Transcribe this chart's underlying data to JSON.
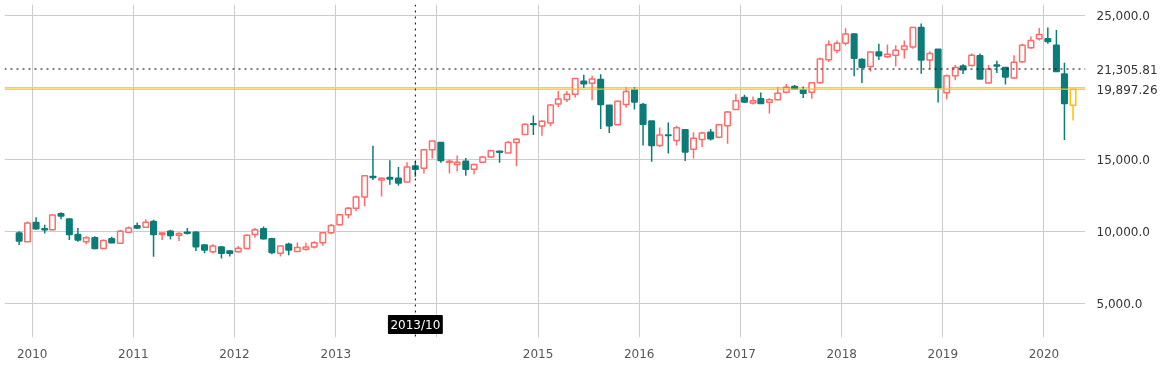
{
  "chart_data": {
    "type": "candlestick",
    "x": [
      "2009-11-15",
      "2009-12-15",
      "2010-01-15",
      "2010-02-15",
      "2010-03-15",
      "2010-04-15",
      "2010-05-15",
      "2010-06-15",
      "2010-07-15",
      "2010-08-15",
      "2010-09-15",
      "2010-10-15",
      "2010-11-15",
      "2010-12-15",
      "2011-01-15",
      "2011-02-15",
      "2011-03-15",
      "2011-04-15",
      "2011-05-15",
      "2011-06-15",
      "2011-07-15",
      "2011-08-15",
      "2011-09-15",
      "2011-10-15",
      "2011-11-15",
      "2011-12-15",
      "2012-01-15",
      "2012-02-15",
      "2012-03-15",
      "2012-04-15",
      "2012-05-15",
      "2012-06-15",
      "2012-07-15",
      "2012-08-15",
      "2012-09-15",
      "2012-10-15",
      "2012-11-15",
      "2012-12-15",
      "2013-01-15",
      "2013-02-15",
      "2013-03-15",
      "2013-04-15",
      "2013-05-15",
      "2013-06-15",
      "2013-07-15",
      "2013-08-15",
      "2013-09-15",
      "2013-10-15",
      "2013-11-15",
      "2013-12-15",
      "2014-01-15",
      "2014-02-15",
      "2014-03-15",
      "2014-04-15",
      "2014-05-15",
      "2014-06-15",
      "2014-07-15",
      "2014-08-15",
      "2014-09-15",
      "2014-10-15",
      "2014-11-15",
      "2014-12-15",
      "2015-01-15",
      "2015-02-15",
      "2015-03-15",
      "2015-04-15",
      "2015-05-15",
      "2015-06-15",
      "2015-07-15",
      "2015-08-15",
      "2015-09-15",
      "2015-10-15",
      "2015-11-15",
      "2015-12-15",
      "2016-01-15",
      "2016-02-15",
      "2016-03-15",
      "2016-04-15",
      "2016-05-15",
      "2016-06-15",
      "2016-07-15",
      "2016-08-15",
      "2016-09-15",
      "2016-10-15",
      "2016-11-15",
      "2016-12-15",
      "2017-01-15",
      "2017-02-15",
      "2017-03-15",
      "2017-04-15",
      "2017-05-15",
      "2017-06-15",
      "2017-07-15",
      "2017-08-15",
      "2017-09-15",
      "2017-10-15",
      "2017-11-15",
      "2017-12-15",
      "2018-01-15",
      "2018-02-15",
      "2018-03-15",
      "2018-04-15",
      "2018-05-15",
      "2018-06-15",
      "2018-07-15",
      "2018-08-15",
      "2018-09-15",
      "2018-10-15",
      "2018-11-15",
      "2018-12-15",
      "2019-01-15",
      "2019-02-15",
      "2019-03-15",
      "2019-04-15",
      "2019-05-15",
      "2019-06-15",
      "2019-07-15",
      "2019-08-15",
      "2019-09-15",
      "2019-10-15",
      "2019-11-15",
      "2019-12-15",
      "2020-01-15",
      "2020-02-15",
      "2020-03-15",
      "2020-04-15"
    ],
    "ohlc": [
      [
        9886,
        10000,
        9045,
        9318
      ],
      [
        9272,
        10682,
        9250,
        10569
      ],
      [
        10614,
        10978,
        10114,
        10182
      ],
      [
        10182,
        10455,
        9841,
        10114
      ],
      [
        10114,
        11183,
        10068,
        11137
      ],
      [
        11228,
        11319,
        10842,
        11069
      ],
      [
        10864,
        10900,
        9386,
        9773
      ],
      [
        9773,
        10228,
        9272,
        9386
      ],
      [
        9272,
        9659,
        9090,
        9545
      ],
      [
        9545,
        9659,
        8749,
        8794
      ],
      [
        8794,
        9420,
        8750,
        9363
      ],
      [
        9477,
        9613,
        9158,
        9204
      ],
      [
        9158,
        10114,
        9158,
        10000
      ],
      [
        9932,
        10341,
        9886,
        10228
      ],
      [
        10387,
        10614,
        10159,
        10228
      ],
      [
        10273,
        10842,
        10228,
        10637
      ],
      [
        10682,
        10796,
        8226,
        9773
      ],
      [
        9773,
        9932,
        9386,
        9886
      ],
      [
        10000,
        10114,
        9431,
        9704
      ],
      [
        9727,
        9932,
        9318,
        9841
      ],
      [
        9932,
        10228,
        9773,
        9864
      ],
      [
        9932,
        10000,
        8635,
        8931
      ],
      [
        9045,
        9090,
        8476,
        8703
      ],
      [
        8567,
        9090,
        8476,
        8976
      ],
      [
        8908,
        8976,
        8112,
        8476
      ],
      [
        8635,
        8703,
        8249,
        8476
      ],
      [
        8567,
        8976,
        8522,
        8817
      ],
      [
        8794,
        9773,
        8749,
        9727
      ],
      [
        9773,
        10228,
        9545,
        10114
      ],
      [
        10182,
        10341,
        9431,
        9477
      ],
      [
        9477,
        9545,
        8408,
        8522
      ],
      [
        8476,
        9000,
        8249,
        8976
      ],
      [
        9090,
        9204,
        8339,
        8703
      ],
      [
        8590,
        9227,
        8590,
        8863
      ],
      [
        8750,
        9200,
        8650,
        8900
      ],
      [
        8900,
        9300,
        8800,
        9200
      ],
      [
        9200,
        9950,
        9000,
        9900
      ],
      [
        9900,
        10500,
        9800,
        10400
      ],
      [
        10450,
        11200,
        10400,
        11150
      ],
      [
        11150,
        11700,
        10900,
        11600
      ],
      [
        11600,
        12500,
        11400,
        12384
      ],
      [
        12384,
        13862,
        11747,
        13862
      ],
      [
        13817,
        15955,
        13567,
        13749
      ],
      [
        13567,
        13760,
        12429,
        13703
      ],
      [
        13749,
        14955,
        13248,
        13635
      ],
      [
        13703,
        14478,
        13180,
        13362
      ],
      [
        13430,
        14818,
        13430,
        14477
      ],
      [
        14545,
        14886,
        13794,
        14317
      ],
      [
        14386,
        15750,
        14022,
        15682
      ],
      [
        15682,
        16296,
        15068,
        16296
      ],
      [
        16183,
        16183,
        14773,
        14932
      ],
      [
        14818,
        15000,
        14022,
        14886
      ],
      [
        14659,
        15273,
        14159,
        14818
      ],
      [
        14886,
        15114,
        13862,
        14317
      ],
      [
        14317,
        14705,
        13977,
        14659
      ],
      [
        14818,
        15250,
        14750,
        15182
      ],
      [
        15182,
        15682,
        15114,
        15614
      ],
      [
        15568,
        15614,
        14773,
        15500
      ],
      [
        15455,
        16296,
        15455,
        16183
      ],
      [
        16183,
        16478,
        14545,
        16410
      ],
      [
        16750,
        17500,
        16705,
        17457
      ],
      [
        17500,
        18071,
        16705,
        17435
      ],
      [
        17343,
        17730,
        16660,
        17662
      ],
      [
        17548,
        18868,
        17320,
        18800
      ],
      [
        18868,
        19777,
        18640,
        19209
      ],
      [
        19186,
        19777,
        19000,
        19550
      ],
      [
        19550,
        20686,
        19322,
        20640
      ],
      [
        20460,
        20914,
        20000,
        20280
      ],
      [
        20307,
        20830,
        19124,
        20602
      ],
      [
        20580,
        20943,
        17122,
        18828
      ],
      [
        18782,
        18782,
        16848,
        17349
      ],
      [
        17417,
        19100,
        17417,
        19055
      ],
      [
        18828,
        20034,
        18600,
        19738
      ],
      [
        19852,
        20034,
        18487,
        19010
      ],
      [
        18828,
        18942,
        15984,
        17463
      ],
      [
        17690,
        17690,
        14847,
        15984
      ],
      [
        15984,
        17235,
        15870,
        16712
      ],
      [
        16712,
        17577,
        15415,
        16666
      ],
      [
        16325,
        17349,
        15984,
        17213
      ],
      [
        17076,
        17076,
        14892,
        15529
      ],
      [
        15711,
        16894,
        15074,
        16484
      ],
      [
        16393,
        16939,
        15870,
        16848
      ],
      [
        16894,
        17122,
        16325,
        16439
      ],
      [
        16553,
        17463,
        16484,
        17417
      ],
      [
        17349,
        18373,
        16097,
        18305
      ],
      [
        18487,
        19556,
        18487,
        19101
      ],
      [
        19328,
        19510,
        18942,
        19010
      ],
      [
        18942,
        19397,
        18828,
        19101
      ],
      [
        19237,
        19670,
        18896,
        18896
      ],
      [
        18987,
        19283,
        18214,
        19169
      ],
      [
        19169,
        20034,
        19169,
        19624
      ],
      [
        19692,
        20261,
        19624,
        20034
      ],
      [
        20079,
        20193,
        19852,
        19920
      ],
      [
        19852,
        20079,
        19283,
        19624
      ],
      [
        19692,
        20352,
        19237,
        20352
      ],
      [
        20352,
        22100,
        20300,
        22000
      ],
      [
        21950,
        23300,
        21800,
        23000
      ],
      [
        22600,
        23300,
        22400,
        23100
      ],
      [
        23100,
        24150,
        22950,
        23750
      ],
      [
        23750,
        23800,
        20800,
        22050
      ],
      [
        21974,
        22050,
        20336,
        21428
      ],
      [
        21474,
        22500,
        21130,
        22498
      ],
      [
        22498,
        23066,
        21929,
        22225
      ],
      [
        22157,
        23021,
        22088,
        22339
      ],
      [
        22270,
        22953,
        21474,
        22611
      ],
      [
        22657,
        23294,
        22043,
        22907
      ],
      [
        22839,
        24250,
        22725,
        24204
      ],
      [
        24204,
        24477,
        20973,
        21929
      ],
      [
        21929,
        22543,
        21292,
        22384
      ],
      [
        22680,
        22680,
        18971,
        19995
      ],
      [
        19654,
        20930,
        19200,
        20837
      ],
      [
        20837,
        21588,
        20518,
        21406
      ],
      [
        21520,
        21633,
        20950,
        21246
      ],
      [
        21542,
        22384,
        21474,
        22270
      ],
      [
        22225,
        22384,
        20609,
        20609
      ],
      [
        20336,
        21588,
        20290,
        21315
      ],
      [
        21588,
        21883,
        21019,
        21520
      ],
      [
        21406,
        21406,
        20223,
        20746
      ],
      [
        20678,
        22270,
        20610,
        21770
      ],
      [
        21815,
        23066,
        21747,
        22953
      ],
      [
        22793,
        23567,
        22725,
        23294
      ],
      [
        23407,
        24158,
        23294,
        23703
      ],
      [
        23407,
        24204,
        23066,
        23225
      ],
      [
        22953,
        24022,
        21133,
        21133
      ],
      [
        20950,
        21747,
        16355,
        18903
      ],
      [
        18789,
        19897.26,
        17720,
        19897.26
      ]
    ],
    "colors": [
      "#0b7c78",
      "#ff6b6b",
      "#0b7c78",
      "#0b7c78",
      "#ff6b6b",
      "#0b7c78",
      "#0b7c78",
      "#0b7c78",
      "#ff6b6b",
      "#0b7c78",
      "#ff6b6b",
      "#0b7c78",
      "#ff6b6b",
      "#ff6b6b",
      "#0b7c78",
      "#ff6b6b",
      "#0b7c78",
      "#ff6b6b",
      "#0b7c78",
      "#ff6b6b",
      "#0b7c78",
      "#0b7c78",
      "#0b7c78",
      "#ff6b6b",
      "#0b7c78",
      "#0b7c78",
      "#ff6b6b",
      "#ff6b6b",
      "#ff6b6b",
      "#0b7c78",
      "#0b7c78",
      "#ff6b6b",
      "#0b7c78",
      "#ff6b6b",
      "#ff6b6b",
      "#ff6b6b",
      "#ff6b6b",
      "#ff6b6b",
      "#ff6b6b",
      "#ff6b6b",
      "#ff6b6b",
      "#ff6b6b",
      "#0b7c78",
      "#ff6b6b",
      "#0b7c78",
      "#0b7c78",
      "#ff6b6b",
      "#0b7c78",
      "#ff6b6b",
      "#ff6b6b",
      "#0b7c78",
      "#ff6b6b",
      "#ff6b6b",
      "#0b7c78",
      "#ff6b6b",
      "#ff6b6b",
      "#ff6b6b",
      "#0b7c78",
      "#ff6b6b",
      "#ff6b6b",
      "#ff6b6b",
      "#0b7c78",
      "#ff6b6b",
      "#ff6b6b",
      "#ff6b6b",
      "#ff6b6b",
      "#ff6b6b",
      "#0b7c78",
      "#ff6b6b",
      "#0b7c78",
      "#0b7c78",
      "#ff6b6b",
      "#ff6b6b",
      "#0b7c78",
      "#0b7c78",
      "#0b7c78",
      "#ff6b6b",
      "#0b7c78",
      "#ff6b6b",
      "#0b7c78",
      "#ff6b6b",
      "#ff6b6b",
      "#0b7c78",
      "#ff6b6b",
      "#ff6b6b",
      "#ff6b6b",
      "#0b7c78",
      "#ff6b6b",
      "#0b7c78",
      "#ff6b6b",
      "#ff6b6b",
      "#ff6b6b",
      "#0b7c78",
      "#0b7c78",
      "#ff6b6b",
      "#ff6b6b",
      "#ff6b6b",
      "#ff6b6b",
      "#ff6b6b",
      "#0b7c78",
      "#0b7c78",
      "#ff6b6b",
      "#0b7c78",
      "#ff6b6b",
      "#ff6b6b",
      "#ff6b6b",
      "#ff6b6b",
      "#0b7c78",
      "#ff6b6b",
      "#0b7c78",
      "#ff6b6b",
      "#ff6b6b",
      "#0b7c78",
      "#ff6b6b",
      "#0b7c78",
      "#ff6b6b",
      "#0b7c78",
      "#0b7c78",
      "#ff6b6b",
      "#ff6b6b",
      "#ff6b6b",
      "#ff6b6b",
      "#0b7c78",
      "#0b7c78",
      "#0b7c78",
      "#ffc000"
    ],
    "xlim": [
      "2009-09-23",
      "2020-05-30"
    ],
    "xticks": [
      {
        "value": "2010",
        "label": "2010"
      },
      {
        "value": "2011",
        "label": "2011"
      },
      {
        "value": "2012",
        "label": "2012"
      },
      {
        "value": "2013",
        "label": "2013"
      },
      {
        "value": "2014",
        "label": null
      },
      {
        "value": "2015",
        "label": "2015"
      },
      {
        "value": "2016",
        "label": "2016"
      },
      {
        "value": "2017",
        "label": "2017"
      },
      {
        "value": "2018",
        "label": "2018"
      },
      {
        "value": "2019",
        "label": "2019"
      },
      {
        "value": "2020",
        "label": "2020"
      }
    ],
    "ylim": [
      2600,
      25800
    ],
    "yticks": [
      {
        "value": 5000,
        "label": "5,000.0"
      },
      {
        "value": 10000,
        "label": "10,000.0"
      },
      {
        "value": 15000,
        "label": "15,000.0"
      },
      {
        "value": 20000,
        "label": null
      },
      {
        "value": 25000,
        "label": "25,000.0"
      }
    ],
    "grid": true,
    "ref_lines": [
      {
        "axis": "y",
        "value": 21305.81,
        "label": "21,305.81",
        "color": "#000000",
        "line_style": "dotted"
      },
      {
        "axis": "y",
        "value": 19897.26,
        "label": "19,897.26",
        "color": "#ffc000",
        "line_style": "solid"
      },
      {
        "axis": "x",
        "value": "2013-10-15",
        "label": "2013/10",
        "color": "#000000",
        "line_style": "dotted"
      }
    ]
  }
}
